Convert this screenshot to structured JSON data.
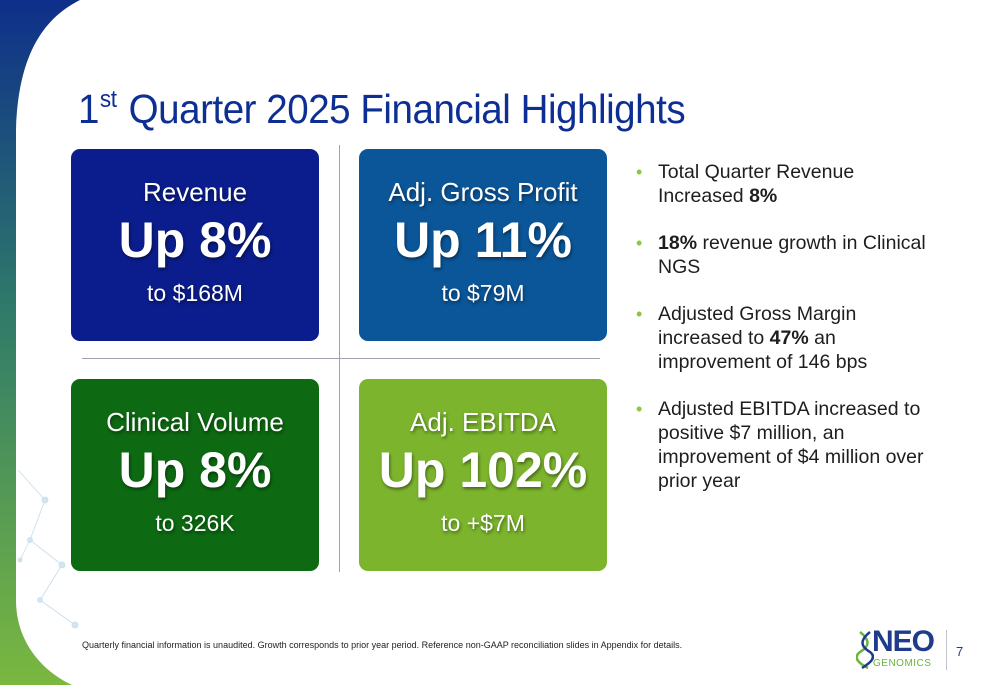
{
  "title": {
    "prefix": "1",
    "superscript": "st",
    "rest": "Quarter 2025 Financial Highlights"
  },
  "tiles": [
    {
      "label": "Revenue",
      "headline": "Up 8%",
      "detail": "to $168M",
      "color": "#0b1d8c"
    },
    {
      "label": "Adj. Gross Profit",
      "headline": "Up 11%",
      "detail": "to $79M",
      "color": "#0b5699"
    },
    {
      "label": "Clinical Volume",
      "headline": "Up 8%",
      "detail": "to 326K",
      "color": "#0d6a12"
    },
    {
      "label": "Adj. EBITDA",
      "headline": "Up 102%",
      "detail": "to +$7M",
      "color": "#7cb52d"
    }
  ],
  "bullets": [
    {
      "before": "Total Quarter Revenue Increased ",
      "bold": "8%",
      "after": ""
    },
    {
      "before": "",
      "bold": "18%",
      "after": " revenue growth in Clinical NGS"
    },
    {
      "before": "Adjusted Gross Margin increased to ",
      "bold": "47%",
      "after": " an improvement of 146 bps"
    },
    {
      "before": "Adjusted EBITDA increased to positive $7 million, an improvement of $4 million over prior year",
      "bold": "",
      "after": ""
    }
  ],
  "footnote": "Quarterly financial information is unaudited. Growth corresponds to prior year period. Reference non-GAAP reconciliation slides in Appendix for details.",
  "logo": {
    "primary": "NEO",
    "secondary": "GENOMICS"
  },
  "page_number": "7",
  "colors": {
    "title": "#0d2f93",
    "bullet_marker": "#8dc63f",
    "band_top": "#0e2f8a",
    "band_bottom": "#7ab840"
  }
}
